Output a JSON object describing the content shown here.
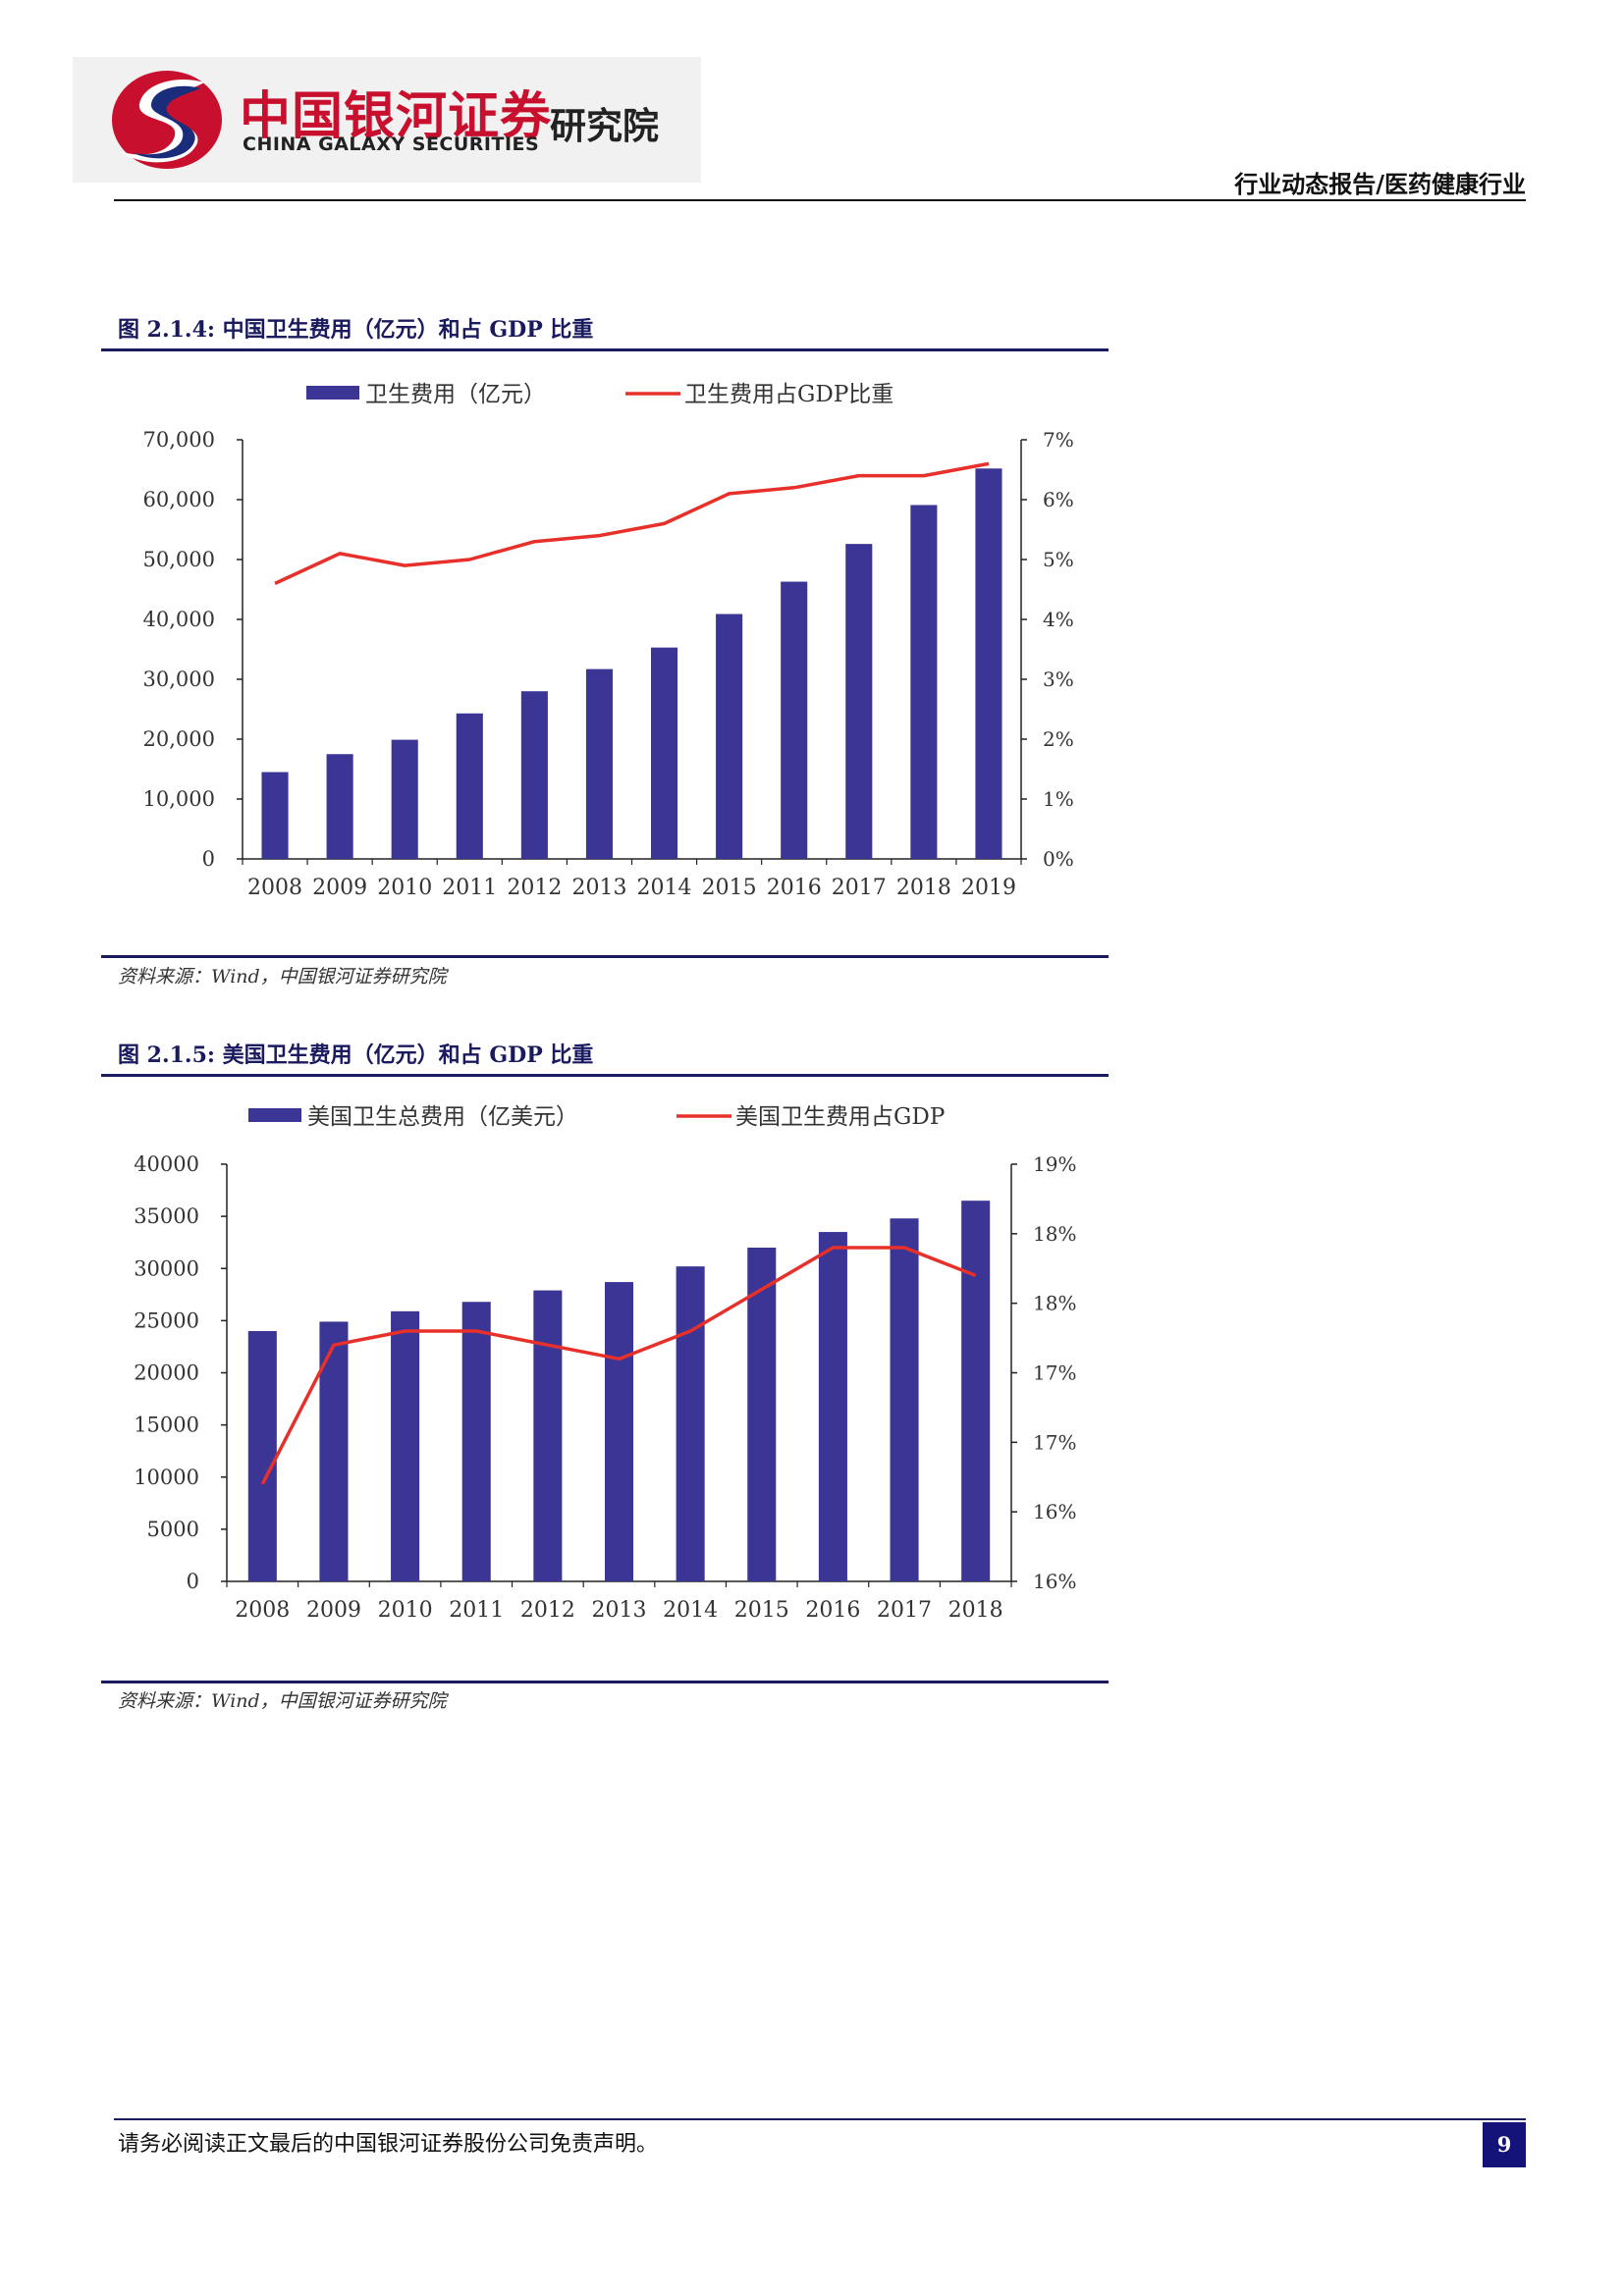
{
  "header": {
    "logo_cn": "中国银河证券",
    "logo_en": "CHINA GALAXY SECURITIES",
    "logo_institute": "研究院",
    "report_type": "行业动态报告/医药健康行业"
  },
  "figures": [
    {
      "title": "图 2.1.4:  中国卫生费用（亿元）和占 GDP 比重",
      "source": "资料来源：Wind，中国银河证券研究院"
    },
    {
      "title": "图 2.1.5:  美国卫生费用（亿元）和占 GDP 比重",
      "source": "资料来源：Wind，中国银河证券研究院"
    }
  ],
  "colors": {
    "bar": "#3b3596",
    "line": "#e8302a",
    "title": "#1a1a5e",
    "logo_red": "#c8102e"
  },
  "chart_data": [
    {
      "type": "bar",
      "categories": [
        "2008",
        "2009",
        "2010",
        "2011",
        "2012",
        "2013",
        "2014",
        "2015",
        "2016",
        "2017",
        "2018",
        "2019"
      ],
      "series": [
        {
          "name": "卫生费用（亿元）",
          "type": "bar",
          "axis": "left",
          "values": [
            14500,
            17500,
            19900,
            24300,
            28000,
            31700,
            35300,
            40900,
            46300,
            52600,
            59100,
            65200
          ]
        },
        {
          "name": "卫生费用占GDP比重",
          "type": "line",
          "axis": "right",
          "values": [
            4.6,
            5.1,
            4.9,
            5.0,
            5.3,
            5.4,
            5.6,
            6.1,
            6.2,
            6.4,
            6.4,
            6.6
          ]
        }
      ],
      "y_left": {
        "ticks": [
          "0",
          "10,000",
          "20,000",
          "30,000",
          "40,000",
          "50,000",
          "60,000",
          "70,000"
        ],
        "range": [
          0,
          70000
        ]
      },
      "y_right": {
        "ticks": [
          "0%",
          "1%",
          "2%",
          "3%",
          "4%",
          "5%",
          "6%",
          "7%"
        ],
        "range": [
          0,
          7
        ]
      },
      "legend": "top"
    },
    {
      "type": "bar",
      "categories": [
        "2008",
        "2009",
        "2010",
        "2011",
        "2012",
        "2013",
        "2014",
        "2015",
        "2016",
        "2017",
        "2018"
      ],
      "series": [
        {
          "name": "美国卫生总费用（亿美元）",
          "type": "bar",
          "axis": "left",
          "values": [
            24000,
            24900,
            25900,
            26800,
            27900,
            28700,
            30200,
            32000,
            33500,
            34800,
            36500
          ]
        },
        {
          "name": "美国卫生费用占GDP",
          "type": "line",
          "axis": "right",
          "values": [
            16.2,
            17.2,
            17.3,
            17.3,
            17.2,
            17.1,
            17.3,
            17.6,
            17.9,
            17.9,
            17.7
          ]
        }
      ],
      "y_left": {
        "ticks": [
          "0",
          "5000",
          "10000",
          "15000",
          "20000",
          "25000",
          "30000",
          "35000",
          "40000"
        ],
        "range": [
          0,
          40000
        ]
      },
      "y_right": {
        "ticks": [
          "16%",
          "16%",
          "17%",
          "17%",
          "18%",
          "18%",
          "19%"
        ],
        "range": [
          15.5,
          18.5
        ]
      },
      "legend": "top"
    }
  ],
  "footer": {
    "disclaimer": "请务必阅读正文最后的中国银河证券股份公司免责声明。",
    "page_number": "9"
  }
}
